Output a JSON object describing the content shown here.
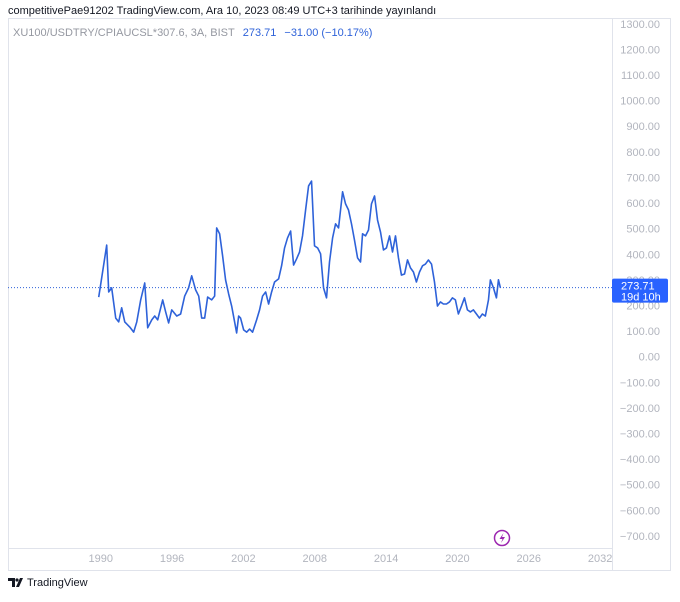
{
  "header": "competitivePae91202 TradingView.com, Ara 10, 2023 08:49 UTC+3 tarihinde yayınlandı",
  "footer": "TradingView",
  "chart_data": {
    "type": "line",
    "legend": {
      "last": "273.71",
      "change": "−31.00 (−10.17%)"
    },
    "price_tag": {
      "price": "273.71",
      "countdown": "19d 10h"
    },
    "xlim": [
      1982.2,
      2033.0
    ],
    "xticks": [
      1990,
      1996,
      2002,
      2008,
      2014,
      2020,
      2026,
      2032
    ],
    "ylim": [
      -743,
      1327
    ],
    "yticks": [
      {
        "value": 1300,
        "label": "1300.00"
      },
      {
        "value": 1200,
        "label": "1200.00"
      },
      {
        "value": 1100,
        "label": "1100.00"
      },
      {
        "value": 1000,
        "label": "1000.00"
      },
      {
        "value": 900,
        "label": "900.00"
      },
      {
        "value": 800,
        "label": "800.00"
      },
      {
        "value": 700,
        "label": "700.00"
      },
      {
        "value": 600,
        "label": "600.00"
      },
      {
        "value": 500,
        "label": "500.00"
      },
      {
        "value": 400,
        "label": "400.00"
      },
      {
        "value": 300,
        "label": "300.00"
      },
      {
        "value": 200,
        "label": "200.00"
      },
      {
        "value": 100,
        "label": "100.00"
      },
      {
        "value": 0,
        "label": "0.00"
      },
      {
        "value": -100,
        "label": "−100.00"
      },
      {
        "value": -200,
        "label": "−200.00"
      },
      {
        "value": -300,
        "label": "−300.00"
      },
      {
        "value": -400,
        "label": "−400.00"
      },
      {
        "value": -500,
        "label": "−500.00"
      },
      {
        "value": -600,
        "label": "−600.00"
      },
      {
        "value": -700,
        "label": "−700.00"
      }
    ],
    "grid": false,
    "x": [
      1989.83,
      1990.08,
      1990.5,
      1990.67,
      1990.92,
      1991.26,
      1991.51,
      1991.76,
      1992.02,
      1992.44,
      1992.77,
      1993.03,
      1993.36,
      1993.7,
      1993.95,
      1994.29,
      1994.54,
      1994.79,
      1995.21,
      1995.46,
      1995.71,
      1995.97,
      1996.39,
      1996.72,
      1997.06,
      1997.39,
      1997.65,
      1997.98,
      1998.24,
      1998.49,
      1998.74,
      1998.99,
      1999.33,
      1999.58,
      1999.75,
      2000.0,
      2000.25,
      2000.5,
      2000.76,
      2001.01,
      2001.26,
      2001.43,
      2001.6,
      2001.76,
      2002.02,
      2002.27,
      2002.52,
      2002.77,
      2003.11,
      2003.36,
      2003.61,
      2003.87,
      2004.12,
      2004.37,
      2004.62,
      2004.96,
      2005.21,
      2005.46,
      2005.71,
      2005.97,
      2006.22,
      2006.47,
      2006.72,
      2006.97,
      2007.23,
      2007.48,
      2007.73,
      2007.98,
      2008.24,
      2008.49,
      2008.74,
      2008.99,
      2009.24,
      2009.5,
      2009.75,
      2010.0,
      2010.34,
      2010.59,
      2010.84,
      2011.09,
      2011.34,
      2011.6,
      2011.85,
      2012.02,
      2012.27,
      2012.52,
      2012.77,
      2013.03,
      2013.28,
      2013.53,
      2013.78,
      2014.03,
      2014.29,
      2014.54,
      2014.79,
      2015.04,
      2015.29,
      2015.55,
      2015.8,
      2016.05,
      2016.3,
      2016.55,
      2016.81,
      2017.06,
      2017.31,
      2017.56,
      2017.82,
      2018.07,
      2018.32,
      2018.57,
      2018.82,
      2019.08,
      2019.33,
      2019.58,
      2019.83,
      2020.08,
      2020.34,
      2020.59,
      2020.84,
      2021.09,
      2021.34,
      2021.6,
      2021.85,
      2022.1,
      2022.35,
      2022.61,
      2022.77,
      2023.03,
      2023.28,
      2023.45,
      2023.61
    ],
    "series": [
      {
        "name": "XU100/USDTRY/CPIAUCSL*307.6, 3A, BIST",
        "color": "#2e62d9",
        "values": [
          237,
          312,
          440,
          257,
          273,
          155,
          140,
          195,
          140,
          120,
          100,
          140,
          226,
          292,
          117,
          148,
          163,
          148,
          226,
          179,
          136,
          187,
          163,
          171,
          241,
          273,
          320,
          265,
          241,
          155,
          155,
          237,
          226,
          241,
          507,
          484,
          398,
          304,
          249,
          202,
          140,
          97,
          163,
          155,
          109,
          100,
          112,
          100,
          148,
          187,
          241,
          257,
          210,
          257,
          296,
          308,
          359,
          429,
          468,
          495,
          362,
          386,
          413,
          476,
          577,
          671,
          690,
          437,
          429,
          406,
          273,
          234,
          374,
          468,
          523,
          507,
          648,
          601,
          577,
          523,
          460,
          390,
          374,
          484,
          476,
          499,
          601,
          632,
          538,
          491,
          421,
          429,
          476,
          413,
          476,
          390,
          323,
          327,
          382,
          351,
          335,
          296,
          335,
          359,
          366,
          382,
          366,
          296,
          202,
          218,
          210,
          210,
          218,
          234,
          226,
          171,
          202,
          234,
          187,
          179,
          187,
          171,
          155,
          171,
          163,
          226,
          304,
          273,
          234,
          304.71,
          273.71
        ]
      }
    ]
  }
}
